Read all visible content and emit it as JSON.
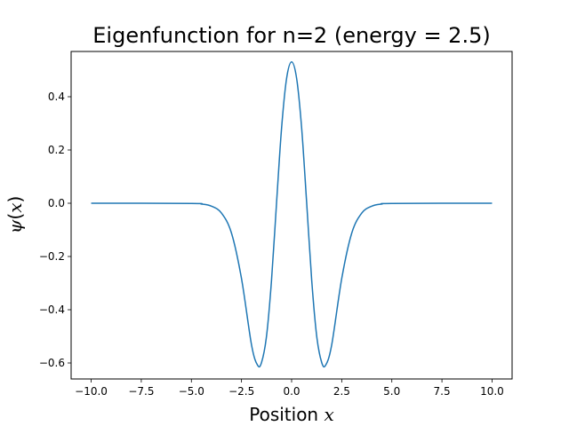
{
  "chart_data": {
    "type": "line",
    "title": "Eigenfunction for n=2 (energy = 2.5)",
    "xlabel": {
      "prefix": "Position ",
      "var": "x"
    },
    "ylabel": {
      "psi": "ψ",
      "open": "(",
      "var": "x",
      "close": ")"
    },
    "xlim": [
      -11.0,
      11.0
    ],
    "ylim": [
      -0.66,
      0.57
    ],
    "x_ticks": [
      -10.0,
      -7.5,
      -5.0,
      -2.5,
      0.0,
      2.5,
      5.0,
      7.5,
      10.0
    ],
    "x_tick_labels": [
      "−10.0",
      "−7.5",
      "−5.0",
      "−2.5",
      "0.0",
      "2.5",
      "5.0",
      "7.5",
      "10.0"
    ],
    "y_ticks": [
      -0.6,
      -0.4,
      -0.2,
      0.0,
      0.2,
      0.4
    ],
    "y_tick_labels": [
      "−0.6",
      "−0.4",
      "−0.2",
      "0.0",
      "0.2",
      "0.4"
    ],
    "grid": false,
    "legend": "none",
    "series": [
      {
        "color": "#1f77b4",
        "x": [
          -10.0,
          -5.0,
          -4.5,
          -4.0,
          -3.5,
          -3.0,
          -2.5,
          -2.0,
          -1.7,
          -1.5,
          -1.25,
          -1.0,
          -0.75,
          -0.5,
          -0.25,
          0.0,
          0.25,
          0.5,
          0.75,
          1.0,
          1.25,
          1.5,
          1.7,
          2.0,
          2.5,
          3.0,
          3.5,
          4.0,
          4.5,
          5.0,
          10.0
        ],
        "y": [
          0.0,
          -0.0007,
          -0.003,
          -0.011,
          -0.037,
          -0.112,
          -0.283,
          -0.532,
          -0.608,
          -0.598,
          -0.498,
          -0.287,
          0.003,
          0.283,
          0.469,
          0.531,
          0.469,
          0.283,
          0.003,
          -0.287,
          -0.498,
          -0.598,
          -0.608,
          -0.532,
          -0.283,
          -0.112,
          -0.037,
          -0.011,
          -0.003,
          -0.0007,
          0.0
        ]
      }
    ]
  }
}
